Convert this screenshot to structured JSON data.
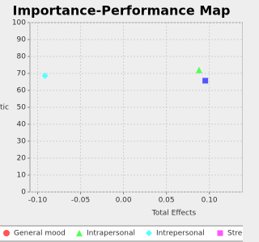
{
  "chart_data": {
    "type": "scatter",
    "title": "Importance-Performance Map",
    "x_label": "Total Effects",
    "y_label": "tic",
    "xlim": [
      -0.109,
      0.139
    ],
    "ylim": [
      0,
      100
    ],
    "xticks": [
      {
        "value": -0.1,
        "label": "-0.10"
      },
      {
        "value": -0.05,
        "label": "-0.05"
      },
      {
        "value": 0,
        "label": "0.00"
      },
      {
        "value": 0.05,
        "label": "0.05"
      },
      {
        "value": 0.1,
        "label": "0.10"
      }
    ],
    "yticks": [
      0,
      10,
      20,
      30,
      40,
      50,
      60,
      70,
      80,
      90,
      100
    ],
    "grid": true,
    "legend": "bottom",
    "series": [
      {
        "name": "General mood",
        "color": "#ff5555",
        "marker": "circle",
        "x": [],
        "values": []
      },
      {
        "name": "Intrapersonal",
        "color": "#55ff55",
        "marker": "triangle",
        "x": [
          0.088
        ],
        "values": [
          72
        ]
      },
      {
        "name": "Intrepersonal",
        "color": "#55ffff",
        "marker": "diamond",
        "x": [
          -0.0915
        ],
        "values": [
          68.6
        ]
      },
      {
        "name": "Stre",
        "color": "#ff55ff",
        "marker": "square",
        "x": [],
        "values": []
      },
      {
        "color": "#5555ff",
        "marker": "square",
        "x": [
          0.0953
        ],
        "values": [
          65.7
        ]
      }
    ]
  }
}
